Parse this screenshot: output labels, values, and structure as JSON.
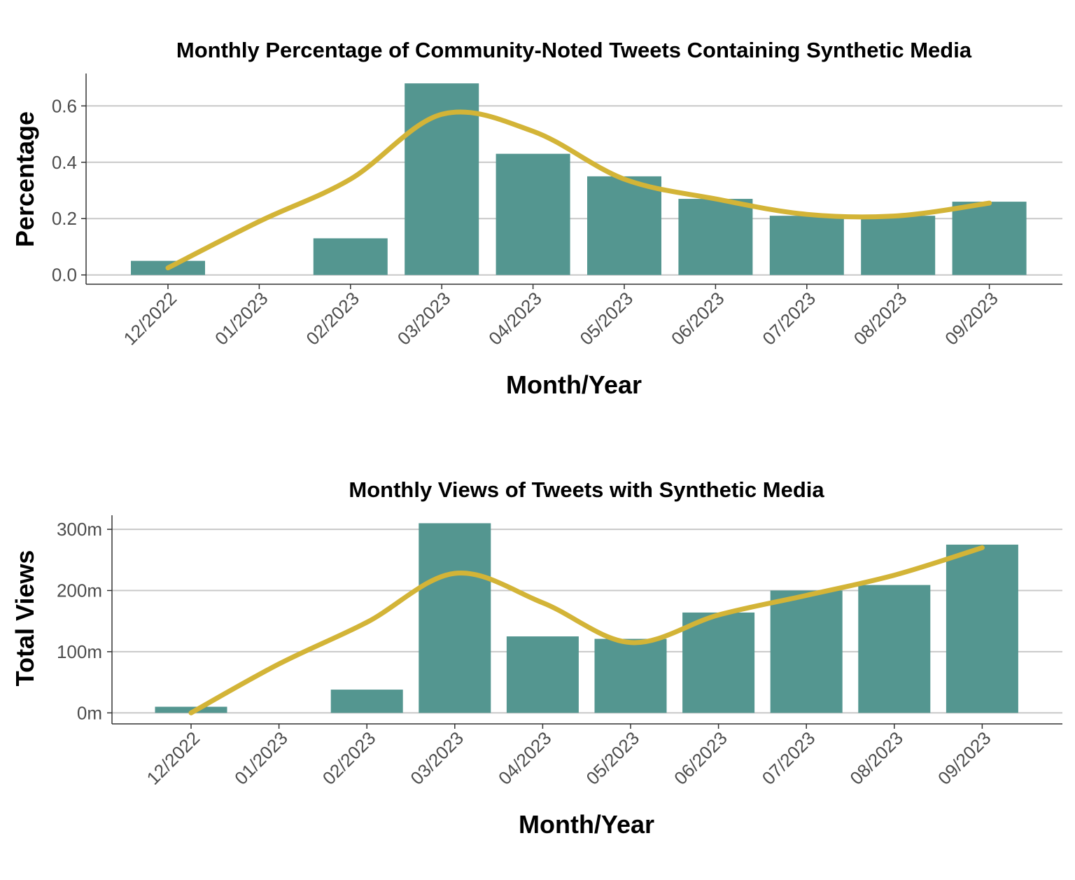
{
  "colors": {
    "bar": "#549690",
    "trend": "#d3b437"
  },
  "chart_data": [
    {
      "type": "bar",
      "title": "Monthly Percentage of Community-Noted Tweets Containing Synthetic Media",
      "xlabel": "Month/Year",
      "ylabel": "Percentage",
      "categories": [
        "12/2022",
        "01/2023",
        "02/2023",
        "03/2023",
        "04/2023",
        "05/2023",
        "06/2023",
        "07/2023",
        "08/2023",
        "09/2023"
      ],
      "values": [
        0.05,
        0,
        0.13,
        0.68,
        0.43,
        0.35,
        0.27,
        0.21,
        0.21,
        0.26
      ],
      "trend": [
        0.025,
        0.19,
        0.34,
        0.57,
        0.51,
        0.34,
        0.27,
        0.215,
        0.21,
        0.255
      ],
      "ylim": [
        -0.033,
        0.715
      ],
      "yticks": [
        0,
        0.2,
        0.4,
        0.6
      ],
      "ytick_labels": [
        "0.0",
        "0.2",
        "0.4",
        "0.6"
      ],
      "grid": true,
      "legend": "none"
    },
    {
      "type": "bar",
      "title": "Monthly Views of Tweets with Synthetic Media",
      "xlabel": "Month/Year",
      "ylabel": "Total Views",
      "categories": [
        "12/2022",
        "01/2023",
        "02/2023",
        "03/2023",
        "04/2023",
        "05/2023",
        "06/2023",
        "07/2023",
        "08/2023",
        "09/2023"
      ],
      "values": [
        10,
        0,
        38,
        310,
        125,
        121,
        164,
        200,
        209,
        275
      ],
      "trend": [
        0,
        80,
        148,
        228,
        180,
        115,
        160,
        192,
        225,
        270
      ],
      "ylim": [
        -18,
        323
      ],
      "yticks": [
        0,
        100,
        200,
        300
      ],
      "ytick_labels": [
        "0m",
        "100m",
        "200m",
        "300m"
      ],
      "grid": true,
      "legend": "none"
    }
  ]
}
